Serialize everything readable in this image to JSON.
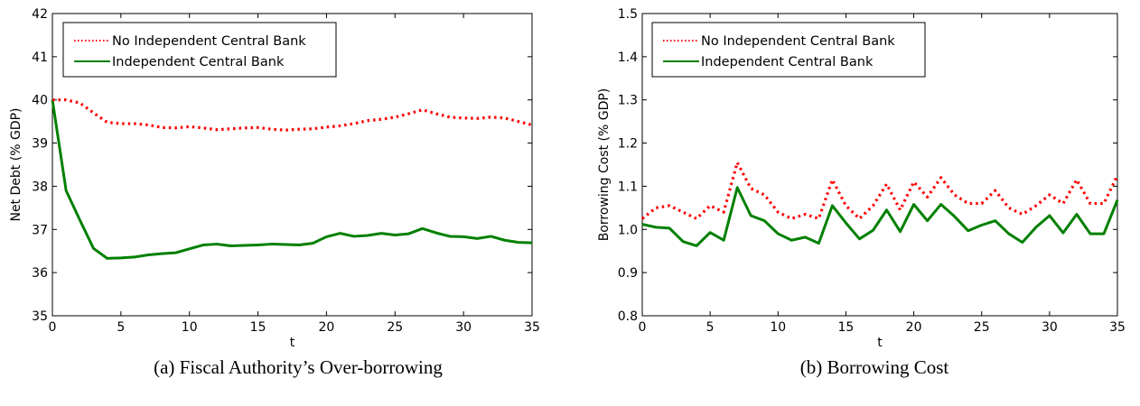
{
  "chart_data": [
    {
      "type": "line",
      "caption": "(a) Fiscal Authority’s Over-borrowing",
      "title": "",
      "xlabel": "t",
      "ylabel": "Net Debt (% GDP)",
      "xlim": [
        0,
        35
      ],
      "ylim": [
        35,
        42
      ],
      "xticks": [
        0,
        5,
        10,
        15,
        20,
        25,
        30,
        35
      ],
      "yticks": [
        35,
        36,
        37,
        38,
        39,
        40,
        41,
        42
      ],
      "grid": false,
      "legend_position": "top-left",
      "x": [
        0,
        1,
        2,
        3,
        4,
        5,
        6,
        7,
        8,
        9,
        10,
        11,
        12,
        13,
        14,
        15,
        16,
        17,
        18,
        19,
        20,
        21,
        22,
        23,
        24,
        25,
        26,
        27,
        28,
        29,
        30,
        31,
        32,
        33,
        34,
        35
      ],
      "series": [
        {
          "name": "No Independent Central Bank",
          "color": "#ff0000",
          "style": "dotted",
          "values": [
            40.0,
            40.0,
            39.93,
            39.7,
            39.48,
            39.45,
            39.45,
            39.42,
            39.36,
            39.35,
            39.38,
            39.35,
            39.31,
            39.33,
            39.35,
            39.36,
            39.32,
            39.3,
            39.32,
            39.33,
            39.37,
            39.4,
            39.45,
            39.52,
            39.55,
            39.6,
            39.68,
            39.77,
            39.68,
            39.6,
            39.58,
            39.57,
            39.6,
            39.58,
            39.5,
            39.42
          ]
        },
        {
          "name": "Independent Central Bank",
          "color": "#008000",
          "style": "solid",
          "values": [
            40.0,
            37.9,
            37.22,
            36.56,
            36.33,
            36.34,
            36.36,
            36.41,
            36.44,
            36.46,
            36.55,
            36.64,
            36.66,
            36.62,
            36.63,
            36.64,
            36.66,
            36.65,
            36.64,
            36.68,
            36.83,
            36.91,
            36.84,
            36.86,
            36.91,
            36.87,
            36.9,
            37.02,
            36.92,
            36.84,
            36.83,
            36.79,
            36.84,
            36.75,
            36.7,
            36.69
          ]
        }
      ]
    },
    {
      "type": "line",
      "caption": "(b) Borrowing Cost",
      "title": "",
      "xlabel": "t",
      "ylabel": "Borrowing Cost (% GDP)",
      "xlim": [
        0,
        35
      ],
      "ylim": [
        0.8,
        1.5
      ],
      "xticks": [
        0,
        5,
        10,
        15,
        20,
        25,
        30,
        35
      ],
      "yticks": [
        0.8,
        0.9,
        1.0,
        1.1,
        1.2,
        1.3,
        1.4,
        1.5
      ],
      "grid": false,
      "legend_position": "top-left",
      "x": [
        0,
        1,
        2,
        3,
        4,
        5,
        6,
        7,
        8,
        9,
        10,
        11,
        12,
        13,
        14,
        15,
        16,
        17,
        18,
        19,
        20,
        21,
        22,
        23,
        24,
        25,
        26,
        27,
        28,
        29,
        30,
        31,
        32,
        33,
        34,
        35
      ],
      "series": [
        {
          "name": "No Independent Central Bank",
          "color": "#ff0000",
          "style": "dotted",
          "values": [
            1.025,
            1.05,
            1.055,
            1.04,
            1.025,
            1.055,
            1.04,
            1.155,
            1.095,
            1.08,
            1.04,
            1.025,
            1.035,
            1.025,
            1.115,
            1.055,
            1.025,
            1.055,
            1.105,
            1.045,
            1.11,
            1.075,
            1.12,
            1.08,
            1.06,
            1.06,
            1.09,
            1.05,
            1.035,
            1.055,
            1.08,
            1.06,
            1.115,
            1.06,
            1.06,
            1.125
          ]
        },
        {
          "name": "Independent Central Bank",
          "color": "#008000",
          "style": "solid",
          "values": [
            1.012,
            1.005,
            1.003,
            0.972,
            0.962,
            0.993,
            0.975,
            1.097,
            1.032,
            1.02,
            0.99,
            0.975,
            0.982,
            0.968,
            1.055,
            1.015,
            0.978,
            0.998,
            1.045,
            0.995,
            1.058,
            1.02,
            1.058,
            1.03,
            0.997,
            1.01,
            1.02,
            0.99,
            0.97,
            1.005,
            1.032,
            0.992,
            1.035,
            0.99,
            0.99,
            1.068
          ]
        }
      ]
    }
  ]
}
